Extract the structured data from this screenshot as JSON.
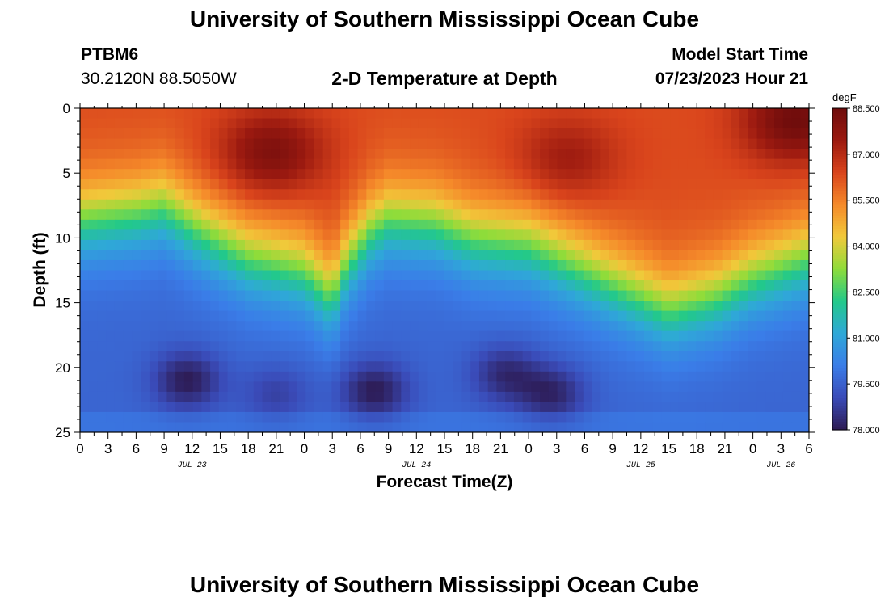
{
  "page": {
    "title": "University of Southern Mississippi Ocean Cube",
    "bottom_title": "University of Southern Mississippi Ocean Cube"
  },
  "header": {
    "station": "PTBM6",
    "coords": "30.2120N  88.5050W",
    "subtitle": "2-D Temperature at Depth",
    "model_label": "Model Start Time",
    "model_time": "07/23/2023 Hour 21"
  },
  "chart_data": {
    "type": "heatmap",
    "title": "2-D Temperature at Depth",
    "xlabel": "Forecast Time(Z)",
    "ylabel": "Depth (ft)",
    "x_range_hours": [
      0,
      78
    ],
    "x_tick_labels": [
      "0",
      "3",
      "6",
      "9",
      "12",
      "15",
      "18",
      "21",
      "0",
      "3",
      "6",
      "9",
      "12",
      "15",
      "18",
      "21",
      "0",
      "3",
      "6",
      "9",
      "12",
      "15",
      "18",
      "21",
      "0",
      "3",
      "6"
    ],
    "day_labels": [
      {
        "label": "JUL 23",
        "hour": 12
      },
      {
        "label": "JUL 24",
        "hour": 36
      },
      {
        "label": "JUL 25",
        "hour": 60
      },
      {
        "label": "JUL 26",
        "hour": 75
      }
    ],
    "y_range_ft": [
      0,
      25
    ],
    "y_ticks": [
      0,
      5,
      10,
      15,
      20,
      25
    ],
    "y_tick_labels": [
      "0",
      "5",
      "10",
      "15",
      "20",
      "25"
    ],
    "colorbar": {
      "unit": "degF",
      "min": 78.0,
      "max": 88.5,
      "tick_labels": [
        "88.500",
        "87.000",
        "85.500",
        "84.000",
        "82.500",
        "81.000",
        "79.500",
        "78.000"
      ],
      "stops": [
        "#2d1b54",
        "#3a4bb8",
        "#3a7de8",
        "#2fa8d8",
        "#22c98a",
        "#8fdc3a",
        "#f1c93a",
        "#f58a2a",
        "#d9441c",
        "#9c1a10",
        "#6e0c0c"
      ]
    },
    "thermocline_depth_by_hour": [
      [
        0,
        8.5
      ],
      [
        6,
        8.0
      ],
      [
        9,
        7.5
      ],
      [
        13,
        9.5
      ],
      [
        18,
        11.5
      ],
      [
        24,
        12.5
      ],
      [
        27,
        14.5
      ],
      [
        28.5,
        12.0
      ],
      [
        31,
        9.5
      ],
      [
        33,
        8.5
      ],
      [
        38,
        8.8
      ],
      [
        42,
        10.0
      ],
      [
        48,
        10.5
      ],
      [
        54,
        12.5
      ],
      [
        60,
        14.5
      ],
      [
        63,
        15.5
      ],
      [
        68,
        14.5
      ],
      [
        72,
        13.0
      ],
      [
        78,
        11.5
      ]
    ],
    "cold_pools": [
      {
        "hour": 11.5,
        "depth_ft": 21.0,
        "temp_f": 78.0
      },
      {
        "hour": 21,
        "depth_ft": 22.0,
        "temp_f": 78.8
      },
      {
        "hour": 31.5,
        "depth_ft": 21.8,
        "temp_f": 78.0
      },
      {
        "hour": 45.5,
        "depth_ft": 20.5,
        "temp_f": 78.3
      },
      {
        "hour": 50.5,
        "depth_ft": 22.0,
        "temp_f": 78.2
      }
    ],
    "warm_cores": [
      {
        "hour": 20.5,
        "depth_ft": 3.5,
        "temp_f": 88.2
      },
      {
        "hour": 52,
        "depth_ft": 4.0,
        "temp_f": 87.5
      },
      {
        "hour": 76.5,
        "depth_ft": 1.0,
        "temp_f": 88.5
      }
    ]
  }
}
